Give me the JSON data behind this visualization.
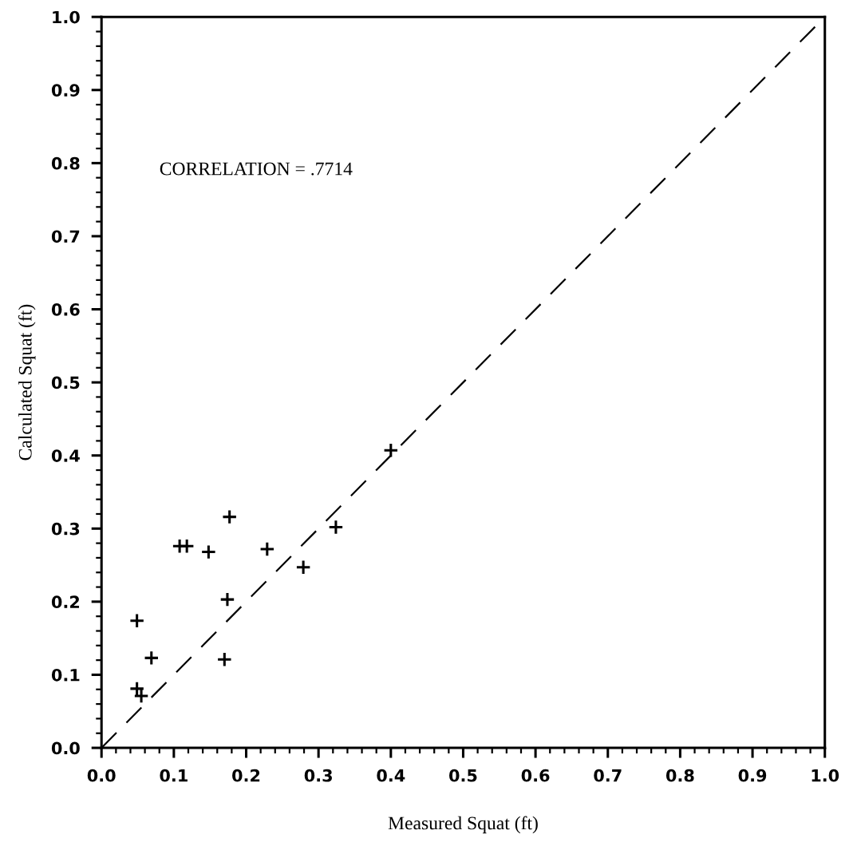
{
  "chart_data": {
    "type": "scatter",
    "xlabel": "Measured Squat (ft)",
    "ylabel": "Calculated Squat (ft)",
    "annotations": [
      "CORRELATION = .7714"
    ],
    "xlim": [
      0,
      1
    ],
    "ylim": [
      0,
      1
    ],
    "xticks": [
      {
        "value": 0,
        "label": "0.0"
      },
      0.1,
      0.2,
      0.3,
      0.4,
      0.5,
      0.6,
      0.7,
      0.8,
      0.9,
      {
        "value": 1,
        "label": "1.0"
      }
    ],
    "yticks": [
      {
        "value": 0,
        "label": "0.0"
      },
      0.1,
      0.2,
      0.3,
      0.4,
      0.5,
      0.6,
      0.7,
      0.8,
      0.9,
      {
        "value": 1,
        "label": "1.0"
      }
    ],
    "series": [
      {
        "marker": "cross",
        "color": "#000000",
        "x": [
          0.4,
          0.177,
          0.324,
          0.108,
          0.118,
          0.148,
          0.229,
          0.279,
          0.174,
          0.049,
          0.069,
          0.17,
          0.049,
          0.055
        ],
        "values": [
          0.407,
          0.316,
          0.302,
          0.276,
          0.276,
          0.268,
          0.272,
          0.247,
          0.203,
          0.174,
          0.123,
          0.121,
          0.081,
          0.071
        ]
      },
      {
        "type": "line",
        "line_style": "dashed",
        "marker": "none",
        "color": "#000000",
        "x": [
          0,
          1
        ],
        "values": [
          0,
          1
        ]
      }
    ]
  }
}
